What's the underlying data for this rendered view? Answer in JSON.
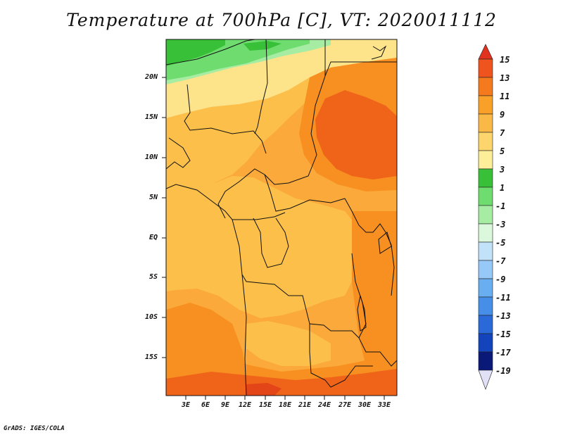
{
  "title": "Temperature at 700hPa [C], VT: 2020011112",
  "credit": "GrADS: IGES/COLA",
  "lat_labels": [
    "20N",
    "15N",
    "10N",
    "5N",
    "EQ",
    "5S",
    "10S",
    "15S"
  ],
  "lon_labels": [
    "3E",
    "6E",
    "9E",
    "12E",
    "15E",
    "18E",
    "21E",
    "24E",
    "27E",
    "30E",
    "33E"
  ],
  "colorbar": {
    "labels": [
      "15",
      "13",
      "11",
      "9",
      "7",
      "5",
      "3",
      "1",
      "-1",
      "-3",
      "-5",
      "-7",
      "-9",
      "-11",
      "-13",
      "-15",
      "-17",
      "-19"
    ],
    "colors": [
      "#e0321e",
      "#f0541e",
      "#f57a1e",
      "#f8a028",
      "#fab846",
      "#fcd66c",
      "#fdee9a",
      "#38c038",
      "#6edc6e",
      "#a6eca2",
      "#dcf8dc",
      "#c2e2fa",
      "#96c8f8",
      "#6aaef2",
      "#468ee8",
      "#2a6ad8",
      "#1444bc",
      "#0a1878",
      "#e0e0f6"
    ]
  },
  "map_colors": {
    "t5": "#fde38a",
    "t7": "#fcc04a",
    "t9": "#faa93a",
    "t11": "#f79020",
    "t13": "#f0641a",
    "t15": "#e34418",
    "green1": "#38c038",
    "green2": "#6edc6e",
    "green3": "#a6eca2",
    "border": "#111111"
  }
}
